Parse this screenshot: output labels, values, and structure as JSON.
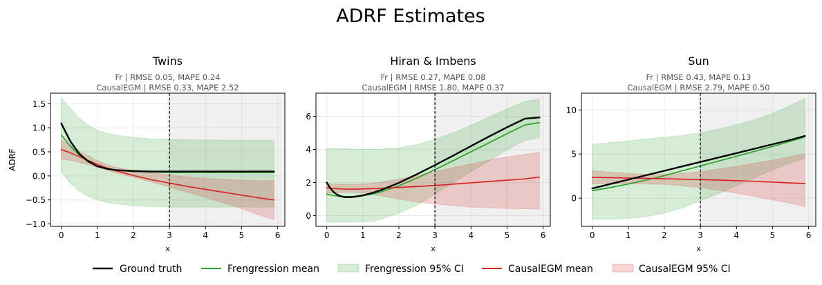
{
  "figure": {
    "title": "ADRF Estimates"
  },
  "legend": {
    "placement": "bottom-center",
    "items": [
      {
        "label": "Ground truth",
        "kind": "line",
        "color": "#000000"
      },
      {
        "label": "Frengression mean",
        "kind": "line",
        "color": "#2ca02c"
      },
      {
        "label": "Frengression 95% CI",
        "kind": "band",
        "color": "#2ca02c"
      },
      {
        "label": "CausalEGM mean",
        "kind": "line",
        "color": "#d62728"
      },
      {
        "label": "CausalEGM 95% CI",
        "kind": "band",
        "color": "#d62728"
      }
    ]
  },
  "chart_data": [
    {
      "type": "line",
      "title": "Twins",
      "subtitle_lines": [
        "Fr | RMSE 0.05, MAPE 0.24",
        "CausalEGM | RMSE 0.33, MAPE 2.52"
      ],
      "xlabel": "x",
      "ylabel": "ADRF",
      "xlim": [
        -0.3,
        6.2
      ],
      "ylim": [
        -1.05,
        1.72
      ],
      "xticks": [
        0,
        1,
        2,
        3,
        4,
        5,
        6
      ],
      "yticks": [
        -1.0,
        -0.5,
        0.0,
        0.5,
        1.0,
        1.5
      ],
      "ytick_labels": [
        "−1.0",
        "−0.5",
        "0.0",
        "0.5",
        "1.0",
        "1.5"
      ],
      "threshold_x": 3,
      "shaded_region_from_x": 3,
      "grid": true,
      "x": [
        0,
        0.25,
        0.5,
        0.75,
        1,
        1.25,
        1.5,
        2,
        2.5,
        3,
        3.5,
        4,
        4.5,
        5,
        5.5,
        5.9
      ],
      "series": [
        {
          "name": "Ground truth",
          "color": "#000000",
          "values": [
            1.09,
            0.72,
            0.46,
            0.3,
            0.2,
            0.15,
            0.12,
            0.1,
            0.09,
            0.09,
            0.09,
            0.09,
            0.09,
            0.09,
            0.09,
            0.09
          ]
        },
        {
          "name": "Frengression mean",
          "color": "#2ca02c",
          "values": [
            0.85,
            0.62,
            0.43,
            0.29,
            0.2,
            0.15,
            0.12,
            0.09,
            0.08,
            0.07,
            0.07,
            0.07,
            0.07,
            0.07,
            0.07,
            0.07
          ],
          "ci_lower": [
            0.08,
            -0.15,
            -0.32,
            -0.43,
            -0.5,
            -0.55,
            -0.58,
            -0.62,
            -0.64,
            -0.65,
            -0.65,
            -0.65,
            -0.65,
            -0.65,
            -0.65,
            -0.65
          ],
          "ci_upper": [
            1.62,
            1.4,
            1.2,
            1.05,
            0.95,
            0.89,
            0.85,
            0.8,
            0.77,
            0.76,
            0.75,
            0.75,
            0.74,
            0.74,
            0.74,
            0.74
          ]
        },
        {
          "name": "CausalEGM mean",
          "color": "#d62728",
          "values": [
            0.55,
            0.48,
            0.4,
            0.32,
            0.24,
            0.17,
            0.11,
            0.01,
            -0.08,
            -0.15,
            -0.22,
            -0.28,
            -0.34,
            -0.4,
            -0.46,
            -0.5
          ],
          "ci_lower": [
            0.35,
            0.32,
            0.28,
            0.23,
            0.18,
            0.12,
            0.07,
            -0.03,
            -0.13,
            -0.23,
            -0.34,
            -0.45,
            -0.56,
            -0.68,
            -0.82,
            -0.91
          ],
          "ci_upper": [
            0.75,
            0.64,
            0.52,
            0.42,
            0.32,
            0.24,
            0.18,
            0.11,
            0.06,
            0.02,
            -0.02,
            -0.05,
            -0.07,
            -0.09,
            -0.1,
            -0.1
          ]
        }
      ]
    },
    {
      "type": "line",
      "title": "Hiran & Imbens",
      "subtitle_lines": [
        "Fr | RMSE 0.27, MAPE 0.08",
        "CausalEGM | RMSE 1.80, MAPE 0.37"
      ],
      "xlabel": "x",
      "ylabel": "",
      "xlim": [
        -0.3,
        6.2
      ],
      "ylim": [
        -0.65,
        7.4
      ],
      "xticks": [
        0,
        1,
        2,
        3,
        4,
        5,
        6
      ],
      "yticks": [
        0,
        2,
        4,
        6
      ],
      "ytick_labels": [
        "0",
        "2",
        "4",
        "6"
      ],
      "threshold_x": 3,
      "shaded_region_from_x": 3,
      "grid": true,
      "x": [
        0,
        0.1,
        0.2,
        0.3,
        0.4,
        0.5,
        0.6,
        0.75,
        1,
        1.25,
        1.5,
        2,
        2.5,
        3,
        3.5,
        4,
        4.5,
        5,
        5.5,
        5.9
      ],
      "series": [
        {
          "name": "Ground truth",
          "color": "#000000",
          "values": [
            2.0,
            1.65,
            1.4,
            1.25,
            1.16,
            1.12,
            1.11,
            1.13,
            1.22,
            1.36,
            1.54,
            1.98,
            2.5,
            3.05,
            3.62,
            4.2,
            4.78,
            5.34,
            5.86,
            5.93
          ]
        },
        {
          "name": "Frengression mean",
          "color": "#2ca02c",
          "values": [
            1.3,
            1.25,
            1.21,
            1.18,
            1.16,
            1.15,
            1.15,
            1.16,
            1.21,
            1.3,
            1.43,
            1.8,
            2.27,
            2.78,
            3.31,
            3.86,
            4.4,
            4.95,
            5.48,
            5.62
          ],
          "ci_lower": [
            -0.4,
            -0.4,
            -0.4,
            -0.4,
            -0.4,
            -0.4,
            -0.4,
            -0.4,
            -0.38,
            -0.34,
            -0.22,
            0.15,
            0.62,
            1.3,
            1.98,
            2.65,
            3.3,
            3.98,
            4.55,
            4.7
          ],
          "ci_upper": [
            4.05,
            4.05,
            4.05,
            4.05,
            4.05,
            4.04,
            4.03,
            4.02,
            4.0,
            4.0,
            4.02,
            4.1,
            4.3,
            4.6,
            5.0,
            5.45,
            5.95,
            6.45,
            6.9,
            7.05
          ]
        },
        {
          "name": "CausalEGM mean",
          "color": "#d62728",
          "values": [
            1.68,
            1.66,
            1.64,
            1.62,
            1.61,
            1.6,
            1.6,
            1.6,
            1.61,
            1.63,
            1.65,
            1.7,
            1.76,
            1.82,
            1.9,
            1.98,
            2.06,
            2.14,
            2.22,
            2.33
          ],
          "ci_lower": [
            1.35,
            1.36,
            1.37,
            1.38,
            1.39,
            1.4,
            1.4,
            1.4,
            1.36,
            1.3,
            1.2,
            1.0,
            0.82,
            0.7,
            0.6,
            0.52,
            0.47,
            0.43,
            0.41,
            0.4
          ],
          "ci_upper": [
            1.95,
            1.93,
            1.92,
            1.91,
            1.9,
            1.9,
            1.9,
            1.9,
            1.92,
            1.96,
            2.02,
            2.2,
            2.42,
            2.65,
            2.9,
            3.12,
            3.35,
            3.55,
            3.7,
            3.82
          ]
        }
      ]
    },
    {
      "type": "line",
      "title": "Sun",
      "subtitle_lines": [
        "Fr | RMSE 0.43, MAPE 0.13",
        "CausalEGM | RMSE 2.79, MAPE 0.50"
      ],
      "xlabel": "x",
      "ylabel": "",
      "xlim": [
        -0.3,
        6.2
      ],
      "ylim": [
        -3.2,
        11.9
      ],
      "xticks": [
        0,
        1,
        2,
        3,
        4,
        5,
        6
      ],
      "yticks": [
        0,
        5,
        10
      ],
      "ytick_labels": [
        "0",
        "5",
        "10"
      ],
      "threshold_x": 3,
      "shaded_region_from_x": 3,
      "grid": true,
      "x": [
        0,
        0.5,
        1,
        1.5,
        2,
        2.5,
        3,
        3.5,
        4,
        4.5,
        5,
        5.5,
        5.9
      ],
      "series": [
        {
          "name": "Ground truth",
          "color": "#000000",
          "values": [
            1.1,
            1.6,
            2.1,
            2.6,
            3.1,
            3.6,
            4.1,
            4.6,
            5.1,
            5.6,
            6.1,
            6.6,
            7.05
          ]
        },
        {
          "name": "Frengression mean",
          "color": "#2ca02c",
          "values": [
            0.85,
            1.2,
            1.6,
            2.05,
            2.55,
            3.1,
            3.65,
            4.2,
            4.75,
            5.3,
            5.85,
            6.45,
            6.95
          ],
          "ci_lower": [
            -2.4,
            -2.4,
            -2.3,
            -2.1,
            -1.7,
            -1.1,
            -0.3,
            0.5,
            1.4,
            2.3,
            3.2,
            4.0,
            4.5
          ],
          "ci_upper": [
            6.1,
            6.3,
            6.5,
            6.7,
            6.9,
            7.1,
            7.4,
            7.8,
            8.3,
            8.9,
            9.6,
            10.5,
            11.3
          ]
        },
        {
          "name": "CausalEGM mean",
          "color": "#d62728",
          "values": [
            2.35,
            2.32,
            2.28,
            2.24,
            2.2,
            2.15,
            2.1,
            2.04,
            1.98,
            1.9,
            1.82,
            1.72,
            1.65
          ],
          "ci_lower": [
            1.6,
            1.62,
            1.62,
            1.6,
            1.55,
            1.4,
            1.2,
            0.9,
            0.55,
            0.2,
            -0.2,
            -0.6,
            -0.95
          ],
          "ci_upper": [
            3.1,
            2.95,
            2.8,
            2.7,
            2.7,
            2.8,
            3.0,
            3.3,
            3.6,
            3.95,
            4.3,
            4.7,
            5.0
          ]
        }
      ]
    }
  ]
}
